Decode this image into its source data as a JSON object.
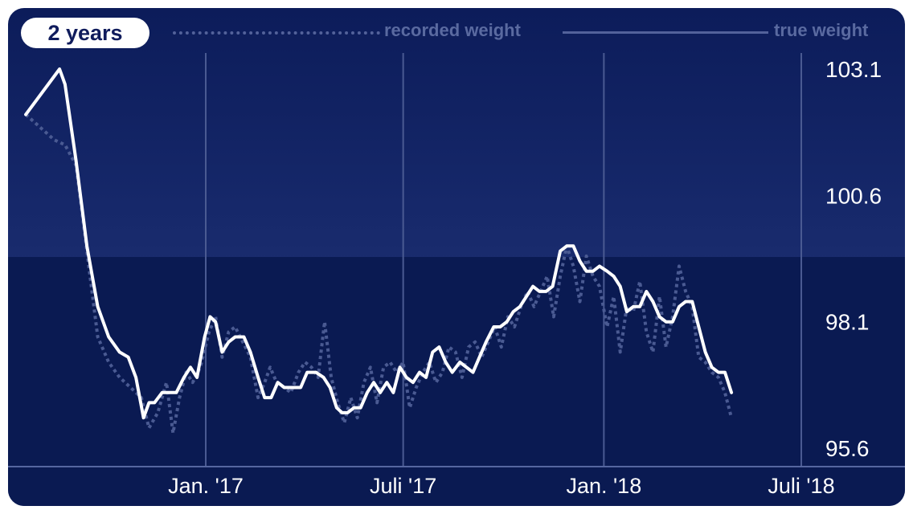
{
  "range_chip": "2 years",
  "legend": {
    "recorded": "recorded weight",
    "true": "true weight"
  },
  "colors": {
    "background_top": "#2a3c7e",
    "background_bottom": "#0a1a52",
    "true_line": "#ffffff",
    "recorded_line": "#4a5a92",
    "gridline": "#4a5a92"
  },
  "chart_data": {
    "type": "line",
    "ylim": [
      95.6,
      103.1
    ],
    "y_ticks": [
      "103.1",
      "100.6",
      "98.1",
      "95.6"
    ],
    "y_tick_values": [
      103.1,
      100.6,
      98.1,
      95.6
    ],
    "x_ticks": [
      "Jan. '17",
      "Juli '17",
      "Jan. '18",
      "Juli '18"
    ],
    "x_tick_dates": [
      "2017-01-01",
      "2017-07-01",
      "2018-01-01",
      "2018-07-01"
    ],
    "grid": "vertical at x ticks",
    "legend_position": "top",
    "series": [
      {
        "name": "true weight",
        "style": "solid",
        "points": [
          [
            "2016-07-20",
            102.2
          ],
          [
            "2016-08-20",
            103.1
          ],
          [
            "2016-08-25",
            102.8
          ],
          [
            "2016-09-04",
            101.3
          ],
          [
            "2016-09-14",
            99.6
          ],
          [
            "2016-09-24",
            98.4
          ],
          [
            "2016-10-04",
            97.8
          ],
          [
            "2016-10-14",
            97.5
          ],
          [
            "2016-10-22",
            97.4
          ],
          [
            "2016-10-29",
            97.0
          ],
          [
            "2016-11-05",
            96.2
          ],
          [
            "2016-11-10",
            96.5
          ],
          [
            "2016-11-15",
            96.5
          ],
          [
            "2016-11-22",
            96.7
          ],
          [
            "2016-11-28",
            96.7
          ],
          [
            "2016-12-05",
            96.7
          ],
          [
            "2016-12-12",
            97.0
          ],
          [
            "2016-12-18",
            97.2
          ],
          [
            "2016-12-24",
            97.0
          ],
          [
            "2016-12-31",
            97.8
          ],
          [
            "2017-01-05",
            98.2
          ],
          [
            "2017-01-10",
            98.1
          ],
          [
            "2017-01-16",
            97.5
          ],
          [
            "2017-01-22",
            97.7
          ],
          [
            "2017-01-28",
            97.8
          ],
          [
            "2017-02-05",
            97.8
          ],
          [
            "2017-02-11",
            97.5
          ],
          [
            "2017-02-18",
            97.0
          ],
          [
            "2017-02-24",
            96.6
          ],
          [
            "2017-03-02",
            96.6
          ],
          [
            "2017-03-08",
            96.9
          ],
          [
            "2017-03-14",
            96.8
          ],
          [
            "2017-03-22",
            96.8
          ],
          [
            "2017-03-29",
            96.8
          ],
          [
            "2017-04-04",
            97.1
          ],
          [
            "2017-04-12",
            97.1
          ],
          [
            "2017-04-19",
            97.0
          ],
          [
            "2017-04-25",
            96.8
          ],
          [
            "2017-05-01",
            96.4
          ],
          [
            "2017-05-06",
            96.3
          ],
          [
            "2017-05-11",
            96.3
          ],
          [
            "2017-05-17",
            96.4
          ],
          [
            "2017-05-23",
            96.4
          ],
          [
            "2017-05-29",
            96.7
          ],
          [
            "2017-06-04",
            96.9
          ],
          [
            "2017-06-10",
            96.7
          ],
          [
            "2017-06-16",
            96.9
          ],
          [
            "2017-06-22",
            96.7
          ],
          [
            "2017-06-28",
            97.2
          ],
          [
            "2017-07-04",
            97.0
          ],
          [
            "2017-07-10",
            96.9
          ],
          [
            "2017-07-16",
            97.1
          ],
          [
            "2017-07-22",
            97.0
          ],
          [
            "2017-07-28",
            97.5
          ],
          [
            "2017-08-03",
            97.6
          ],
          [
            "2017-08-09",
            97.3
          ],
          [
            "2017-08-15",
            97.1
          ],
          [
            "2017-08-22",
            97.3
          ],
          [
            "2017-08-28",
            97.2
          ],
          [
            "2017-09-03",
            97.1
          ],
          [
            "2017-09-09",
            97.4
          ],
          [
            "2017-09-15",
            97.7
          ],
          [
            "2017-09-22",
            98.0
          ],
          [
            "2017-09-28",
            98.0
          ],
          [
            "2017-10-04",
            98.1
          ],
          [
            "2017-10-10",
            98.3
          ],
          [
            "2017-10-16",
            98.4
          ],
          [
            "2017-10-22",
            98.6
          ],
          [
            "2017-10-28",
            98.8
          ],
          [
            "2017-11-03",
            98.7
          ],
          [
            "2017-11-09",
            98.7
          ],
          [
            "2017-11-15",
            98.8
          ],
          [
            "2017-11-22",
            99.5
          ],
          [
            "2017-11-28",
            99.6
          ],
          [
            "2017-12-04",
            99.6
          ],
          [
            "2017-12-10",
            99.3
          ],
          [
            "2017-12-16",
            99.1
          ],
          [
            "2017-12-22",
            99.1
          ],
          [
            "2017-12-28",
            99.2
          ],
          [
            "2018-01-04",
            99.1
          ],
          [
            "2018-01-10",
            99.0
          ],
          [
            "2018-01-16",
            98.8
          ],
          [
            "2018-01-22",
            98.3
          ],
          [
            "2018-01-28",
            98.4
          ],
          [
            "2018-02-03",
            98.4
          ],
          [
            "2018-02-09",
            98.7
          ],
          [
            "2018-02-15",
            98.5
          ],
          [
            "2018-02-21",
            98.2
          ],
          [
            "2018-02-27",
            98.1
          ],
          [
            "2018-03-05",
            98.1
          ],
          [
            "2018-03-11",
            98.4
          ],
          [
            "2018-03-17",
            98.5
          ],
          [
            "2018-03-23",
            98.5
          ],
          [
            "2018-03-29",
            98.0
          ],
          [
            "2018-04-04",
            97.5
          ],
          [
            "2018-04-10",
            97.2
          ],
          [
            "2018-04-16",
            97.1
          ],
          [
            "2018-04-22",
            97.1
          ],
          [
            "2018-04-28",
            96.7
          ]
        ]
      },
      {
        "name": "recorded weight",
        "style": "dotted",
        "points": [
          [
            "2016-07-20",
            102.2
          ],
          [
            "2016-08-15",
            101.7
          ],
          [
            "2016-08-25",
            101.6
          ],
          [
            "2016-09-04",
            101.2
          ],
          [
            "2016-09-14",
            99.5
          ],
          [
            "2016-09-24",
            97.8
          ],
          [
            "2016-10-04",
            97.3
          ],
          [
            "2016-10-14",
            97.0
          ],
          [
            "2016-10-24",
            96.8
          ],
          [
            "2016-11-03",
            96.6
          ],
          [
            "2016-11-10",
            96.0
          ],
          [
            "2016-11-18",
            96.3
          ],
          [
            "2016-11-26",
            96.9
          ],
          [
            "2016-12-02",
            95.9
          ],
          [
            "2016-12-08",
            96.6
          ],
          [
            "2016-12-14",
            97.1
          ],
          [
            "2016-12-20",
            96.9
          ],
          [
            "2016-12-27",
            97.2
          ],
          [
            "2017-01-04",
            97.9
          ],
          [
            "2017-01-10",
            98.2
          ],
          [
            "2017-01-16",
            97.4
          ],
          [
            "2017-01-22",
            97.9
          ],
          [
            "2017-01-28",
            98.0
          ],
          [
            "2017-02-04",
            97.7
          ],
          [
            "2017-02-11",
            97.4
          ],
          [
            "2017-02-18",
            96.6
          ],
          [
            "2017-02-24",
            96.9
          ],
          [
            "2017-03-01",
            97.2
          ],
          [
            "2017-03-07",
            96.9
          ],
          [
            "2017-03-14",
            96.8
          ],
          [
            "2017-03-20",
            96.7
          ],
          [
            "2017-03-27",
            97.1
          ],
          [
            "2017-04-02",
            97.3
          ],
          [
            "2017-04-08",
            97.2
          ],
          [
            "2017-04-14",
            97.0
          ],
          [
            "2017-04-20",
            98.1
          ],
          [
            "2017-04-26",
            97.0
          ],
          [
            "2017-05-02",
            96.5
          ],
          [
            "2017-05-08",
            96.1
          ],
          [
            "2017-05-14",
            96.6
          ],
          [
            "2017-05-20",
            96.2
          ],
          [
            "2017-05-26",
            96.9
          ],
          [
            "2017-06-01",
            97.2
          ],
          [
            "2017-06-07",
            96.5
          ],
          [
            "2017-06-13",
            97.2
          ],
          [
            "2017-06-19",
            97.3
          ],
          [
            "2017-06-25",
            97.1
          ],
          [
            "2017-07-01",
            97.3
          ],
          [
            "2017-07-07",
            96.4
          ],
          [
            "2017-07-13",
            96.8
          ],
          [
            "2017-07-19",
            97.1
          ],
          [
            "2017-07-25",
            97.3
          ],
          [
            "2017-07-31",
            96.9
          ],
          [
            "2017-08-06",
            97.1
          ],
          [
            "2017-08-12",
            97.6
          ],
          [
            "2017-08-18",
            97.5
          ],
          [
            "2017-08-24",
            97.0
          ],
          [
            "2017-08-30",
            97.6
          ],
          [
            "2017-09-05",
            97.7
          ],
          [
            "2017-09-11",
            97.4
          ],
          [
            "2017-09-17",
            97.7
          ],
          [
            "2017-09-23",
            98.0
          ],
          [
            "2017-09-29",
            97.6
          ],
          [
            "2017-10-05",
            98.2
          ],
          [
            "2017-10-11",
            98.0
          ],
          [
            "2017-10-17",
            98.4
          ],
          [
            "2017-10-23",
            98.7
          ],
          [
            "2017-10-29",
            98.4
          ],
          [
            "2017-11-04",
            98.7
          ],
          [
            "2017-11-10",
            99.0
          ],
          [
            "2017-11-16",
            98.2
          ],
          [
            "2017-11-22",
            99.0
          ],
          [
            "2017-11-28",
            99.6
          ],
          [
            "2017-12-04",
            99.2
          ],
          [
            "2017-12-10",
            98.5
          ],
          [
            "2017-12-16",
            99.4
          ],
          [
            "2017-12-22",
            99.0
          ],
          [
            "2017-12-28",
            98.8
          ],
          [
            "2018-01-04",
            98.0
          ],
          [
            "2018-01-10",
            98.6
          ],
          [
            "2018-01-16",
            97.5
          ],
          [
            "2018-01-22",
            98.4
          ],
          [
            "2018-01-28",
            98.3
          ],
          [
            "2018-02-03",
            98.9
          ],
          [
            "2018-02-09",
            97.9
          ],
          [
            "2018-02-15",
            97.5
          ],
          [
            "2018-02-21",
            98.6
          ],
          [
            "2018-02-27",
            97.6
          ],
          [
            "2018-03-05",
            98.2
          ],
          [
            "2018-03-11",
            99.2
          ],
          [
            "2018-03-17",
            98.7
          ],
          [
            "2018-03-23",
            98.4
          ],
          [
            "2018-03-29",
            97.4
          ],
          [
            "2018-04-04",
            97.3
          ],
          [
            "2018-04-10",
            97.1
          ],
          [
            "2018-04-16",
            97.0
          ],
          [
            "2018-04-22",
            96.7
          ],
          [
            "2018-04-28",
            96.2
          ]
        ]
      }
    ]
  }
}
